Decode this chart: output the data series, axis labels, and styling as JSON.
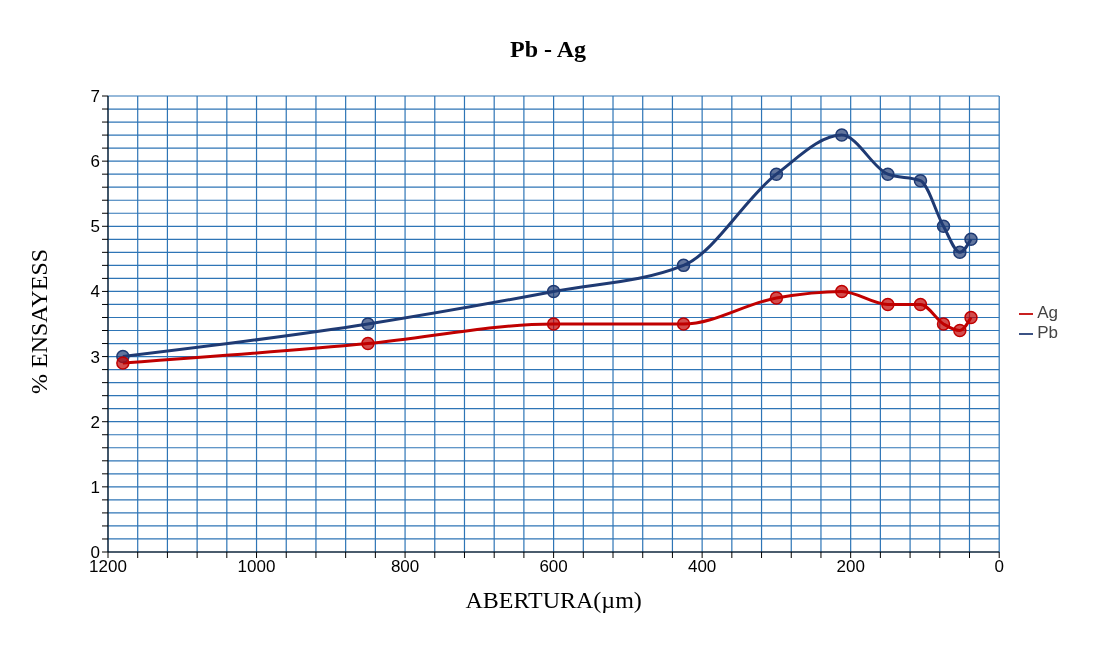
{
  "chart_data": {
    "type": "line",
    "title": "Pb - Ag",
    "xlabel": "ABERTURA(µm)",
    "ylabel": "% ENSAYESS",
    "x": [
      1180,
      850,
      600,
      425,
      300,
      212,
      150,
      106,
      75,
      53,
      38
    ],
    "series": [
      {
        "name": "Pb",
        "color": "#1f3a73",
        "values": [
          3.0,
          3.5,
          4.0,
          4.4,
          5.8,
          6.4,
          5.8,
          5.7,
          5.0,
          4.6,
          4.8
        ]
      },
      {
        "name": "Ag",
        "color": "#c00000",
        "values": [
          2.9,
          3.2,
          3.5,
          3.5,
          3.9,
          4.0,
          3.8,
          3.8,
          3.5,
          3.4,
          3.6
        ]
      }
    ],
    "xlim": [
      1200,
      0
    ],
    "xticks": [
      0,
      {
        "value": 40,
        "label": null
      },
      {
        "value": 80,
        "label": null
      },
      {
        "value": 120,
        "label": null
      },
      {
        "value": 160,
        "label": null
      },
      200,
      {
        "value": 240,
        "label": null
      },
      {
        "value": 280,
        "label": null
      },
      {
        "value": 320,
        "label": null
      },
      {
        "value": 360,
        "label": null
      },
      400,
      {
        "value": 440,
        "label": null
      },
      {
        "value": 480,
        "label": null
      },
      {
        "value": 520,
        "label": null
      },
      {
        "value": 560,
        "label": null
      },
      600,
      {
        "value": 640,
        "label": null
      },
      {
        "value": 680,
        "label": null
      },
      {
        "value": 720,
        "label": null
      },
      {
        "value": 760,
        "label": null
      },
      800,
      {
        "value": 840,
        "label": null
      },
      {
        "value": 880,
        "label": null
      },
      {
        "value": 920,
        "label": null
      },
      {
        "value": 960,
        "label": null
      },
      1000,
      {
        "value": 1040,
        "label": null
      },
      {
        "value": 1080,
        "label": null
      },
      {
        "value": 1120,
        "label": null
      },
      {
        "value": 1160,
        "label": null
      },
      1200
    ],
    "ylim": [
      0,
      7
    ],
    "yticks": [
      0,
      {
        "value": 0.2,
        "label": null
      },
      {
        "value": 0.4,
        "label": null
      },
      {
        "value": 0.6,
        "label": null
      },
      {
        "value": 0.8,
        "label": null
      },
      1,
      {
        "value": 1.2,
        "label": null
      },
      {
        "value": 1.4,
        "label": null
      },
      {
        "value": 1.6,
        "label": null
      },
      {
        "value": 1.8,
        "label": null
      },
      2,
      {
        "value": 2.2,
        "label": null
      },
      {
        "value": 2.4,
        "label": null
      },
      {
        "value": 2.6,
        "label": null
      },
      {
        "value": 2.8,
        "label": null
      },
      3,
      {
        "value": 3.2,
        "label": null
      },
      {
        "value": 3.4,
        "label": null
      },
      {
        "value": 3.6,
        "label": null
      },
      {
        "value": 3.8,
        "label": null
      },
      4,
      {
        "value": 4.2,
        "label": null
      },
      {
        "value": 4.4,
        "label": null
      },
      {
        "value": 4.6,
        "label": null
      },
      {
        "value": 4.8,
        "label": null
      },
      5,
      {
        "value": 5.2,
        "label": null
      },
      {
        "value": 5.4,
        "label": null
      },
      {
        "value": 5.6,
        "label": null
      },
      {
        "value": 5.8,
        "label": null
      },
      6,
      {
        "value": 6.2,
        "label": null
      },
      {
        "value": 6.4,
        "label": null
      },
      {
        "value": 6.6,
        "label": null
      },
      {
        "value": 6.8,
        "label": null
      },
      7
    ],
    "grid": true,
    "legend": "right",
    "marker": "circle",
    "line_style": "solid"
  }
}
